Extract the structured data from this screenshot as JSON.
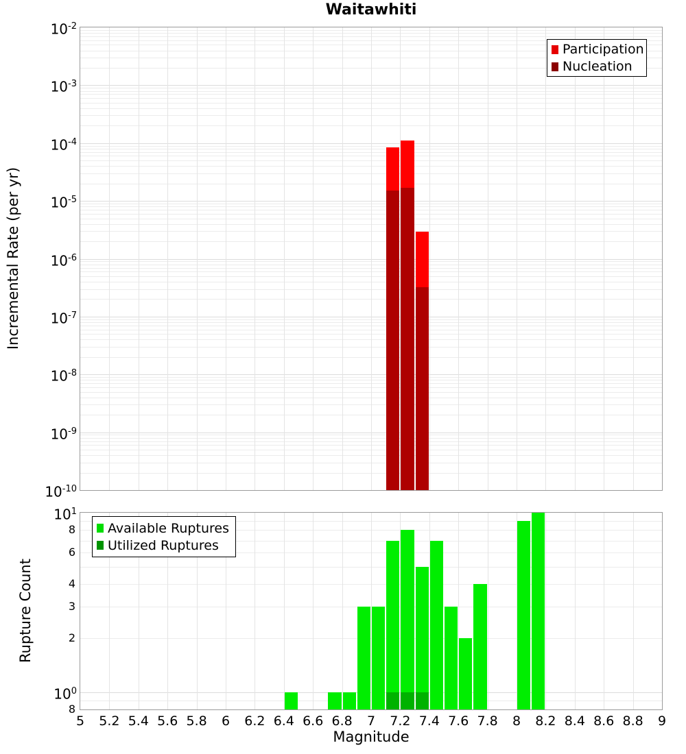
{
  "title": "Waitawhiti",
  "xlabel": "Magnitude",
  "colors": {
    "grid_major": "#dcdcdc",
    "grid_minor": "#ececec",
    "grid_vertical": "#e4e4e4",
    "frame": "#9a9a9a",
    "text": "#000000"
  },
  "x_axis": {
    "min": 5,
    "max": 9,
    "tick_values": [
      5,
      5.2,
      5.4,
      5.6,
      5.8,
      6,
      6.2,
      6.4,
      6.6,
      6.8,
      7,
      7.2,
      7.4,
      7.6,
      7.8,
      8,
      8.2,
      8.4,
      8.6,
      8.8,
      9
    ],
    "tick_labels": [
      "5",
      "5.2",
      "5.4",
      "5.6",
      "5.8",
      "6",
      "6.2",
      "6.4",
      "6.6",
      "6.8",
      "7",
      "7.2",
      "7.4",
      "7.6",
      "7.8",
      "8",
      "8.2",
      "8.4",
      "8.6",
      "8.8",
      "9"
    ]
  },
  "chart_data": [
    {
      "type": "bar",
      "title": "Waitawhiti",
      "xlabel": "Magnitude",
      "ylabel": "Incremental Rate (per yr)",
      "yscale": "log",
      "xlim": [
        5,
        9
      ],
      "ylim": [
        1e-10,
        0.01
      ],
      "bar_width": 0.1,
      "grid": true,
      "legend_position": "top-right",
      "y_major_ticks": [
        {
          "exponent": "-2",
          "value": 0.01
        },
        {
          "exponent": "-3",
          "value": 0.001
        },
        {
          "exponent": "-4",
          "value": 0.0001
        },
        {
          "exponent": "-5",
          "value": 1e-05
        },
        {
          "exponent": "-6",
          "value": 1e-06
        },
        {
          "exponent": "-7",
          "value": 1e-07
        },
        {
          "exponent": "-8",
          "value": 1e-08
        },
        {
          "exponent": "-9",
          "value": 1e-09
        },
        {
          "exponent": "-10",
          "value": 1e-10
        }
      ],
      "series": [
        {
          "name": "Participation",
          "color": "#ff0000",
          "swatch_color": "#e60000",
          "x": [
            7.15,
            7.25,
            7.35
          ],
          "y": [
            8.5e-05,
            0.00011,
            2.9e-06
          ]
        },
        {
          "name": "Nucleation",
          "color": "#ae0000",
          "swatch_color": "#8b0000",
          "x": [
            7.15,
            7.25,
            7.35
          ],
          "y": [
            1.5e-05,
            1.7e-05,
            3.2e-07
          ]
        }
      ]
    },
    {
      "type": "bar",
      "title": "",
      "xlabel": "Magnitude",
      "ylabel": "Rupture Count",
      "yscale": "log",
      "xlim": [
        5,
        9
      ],
      "ylim": [
        0.8,
        10
      ],
      "bar_width": 0.1,
      "grid": true,
      "legend_position": "top-left",
      "y_major_ticks": [
        {
          "exponent": "1",
          "value": 10
        },
        {
          "exponent": "0",
          "value": 1
        }
      ],
      "y_minor_tick_labels": [
        {
          "label": "8",
          "value": 8
        },
        {
          "label": "6",
          "value": 6
        },
        {
          "label": "4",
          "value": 4
        },
        {
          "label": "3",
          "value": 3
        },
        {
          "label": "2",
          "value": 2
        },
        {
          "label": "8",
          "value": 0.8
        }
      ],
      "series": [
        {
          "name": "Available Ruptures",
          "color": "#00ee00",
          "swatch_color": "#00dd00",
          "x": [
            6.45,
            6.75,
            6.85,
            6.95,
            7.05,
            7.15,
            7.25,
            7.35,
            7.45,
            7.55,
            7.65,
            7.75,
            8.05,
            8.15
          ],
          "y": [
            1,
            1,
            1,
            3,
            3,
            7,
            8,
            5,
            7,
            3,
            2,
            4,
            9,
            10
          ]
        },
        {
          "name": "Utilized Ruptures",
          "color": "#00b200",
          "swatch_color": "#009300",
          "x": [
            7.15,
            7.25,
            7.35
          ],
          "y": [
            1,
            1,
            1
          ]
        }
      ]
    }
  ]
}
